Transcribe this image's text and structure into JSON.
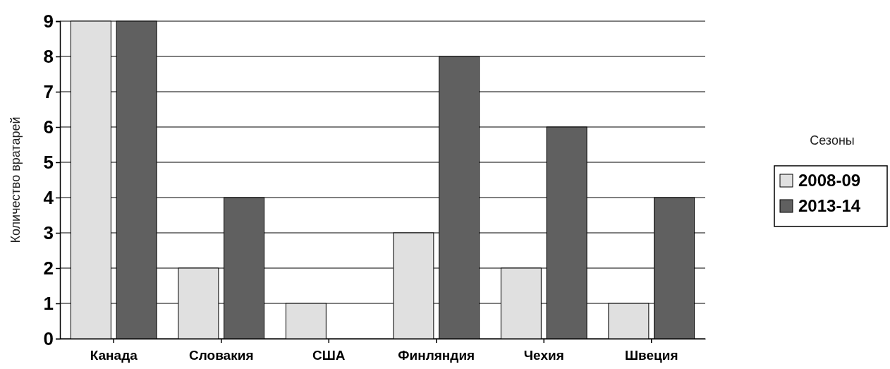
{
  "chart_data": {
    "type": "bar",
    "ylabel": "Количество вратарей",
    "legend_title": "Сезоны",
    "categories": [
      "Канада",
      "Словакия",
      "США",
      "Финляндия",
      "Чехия",
      "Швеция"
    ],
    "series": [
      {
        "name": "2008-09",
        "color": "#e0e0e0",
        "values": [
          9,
          2,
          1,
          3,
          2,
          1
        ]
      },
      {
        "name": "2013-14",
        "color": "#606060",
        "values": [
          9,
          4,
          0,
          8,
          6,
          4
        ]
      }
    ],
    "ylim": [
      0,
      9
    ],
    "yticks": [
      0,
      1,
      2,
      3,
      4,
      5,
      6,
      7,
      8,
      9
    ],
    "grid": "y",
    "legend": "right"
  }
}
